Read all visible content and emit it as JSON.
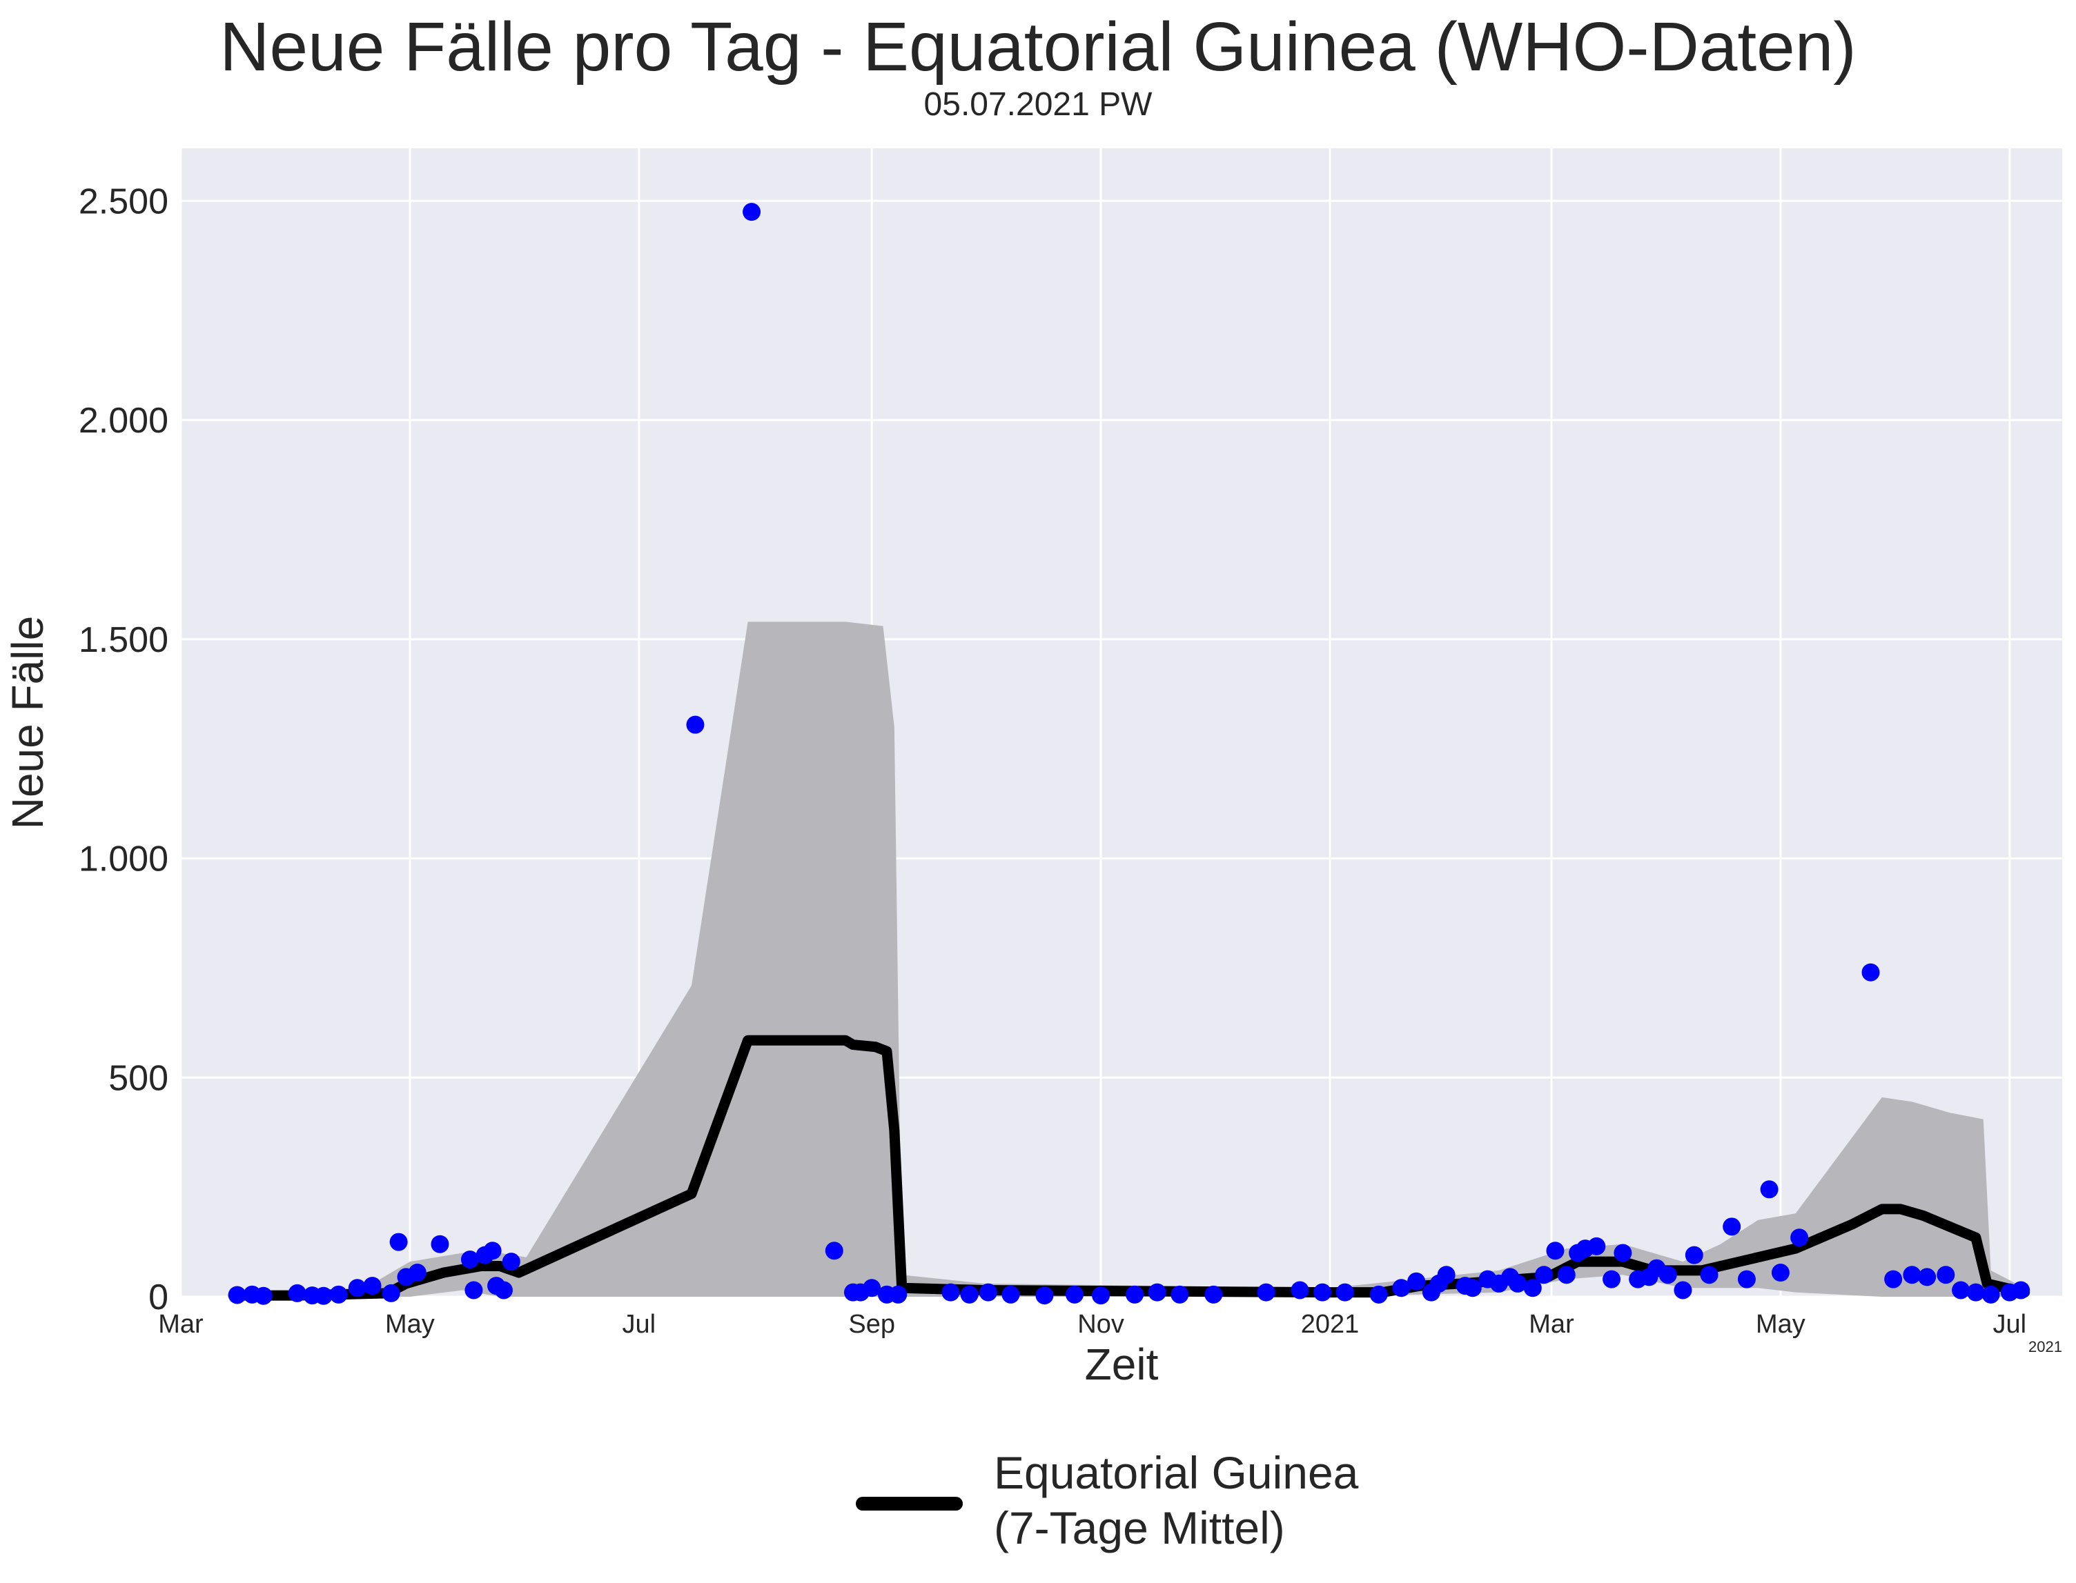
{
  "chart_data": {
    "type": "scatter",
    "title": "Neue Fälle pro Tag - Equatorial Guinea (WHO-Daten)",
    "subtitle": "05.07.2021 PW",
    "xlabel": "Zeit",
    "ylabel": "Neue Fälle",
    "x_offset_label": "2021",
    "xlim": [
      "2020-03-01",
      "2021-07-15"
    ],
    "ylim": [
      0,
      2620
    ],
    "grid": true,
    "legend_position": "bottom-center",
    "x_ticks": [
      {
        "date": "2020-03-01",
        "label": "Mar"
      },
      {
        "date": "2020-05-01",
        "label": "May"
      },
      {
        "date": "2020-07-01",
        "label": "Jul"
      },
      {
        "date": "2020-09-01",
        "label": "Sep"
      },
      {
        "date": "2020-11-01",
        "label": "Nov"
      },
      {
        "date": "2021-01-01",
        "label": "2021"
      },
      {
        "date": "2021-03-01",
        "label": "Mar"
      },
      {
        "date": "2021-05-01",
        "label": "May"
      },
      {
        "date": "2021-07-01",
        "label": "Jul"
      }
    ],
    "y_ticks": [
      {
        "value": 0,
        "label": "0"
      },
      {
        "value": 500,
        "label": "500"
      },
      {
        "value": 1000,
        "label": "1.000"
      },
      {
        "value": 1500,
        "label": "1.500"
      },
      {
        "value": 2000,
        "label": "2.000"
      },
      {
        "value": 2500,
        "label": "2.500"
      }
    ],
    "colors": {
      "points": "#0000ff",
      "line": "#000000",
      "band": "#b3b3b7",
      "plot_bg": "#eaeaf2",
      "grid": "#ffffff"
    },
    "series": [
      {
        "name": "Equatorial Guinea\n(7-Tage Mittel)",
        "kind": "line",
        "points": [
          [
            "2020-03-15",
            3
          ],
          [
            "2020-04-01",
            3
          ],
          [
            "2020-04-25",
            8
          ],
          [
            "2020-04-30",
            30
          ],
          [
            "2020-05-10",
            55
          ],
          [
            "2020-05-20",
            70
          ],
          [
            "2020-05-25",
            70
          ],
          [
            "2020-05-30",
            55
          ],
          [
            "2020-07-15",
            235
          ],
          [
            "2020-07-30",
            585
          ],
          [
            "2020-08-25",
            585
          ],
          [
            "2020-08-27",
            575
          ],
          [
            "2020-09-02",
            570
          ],
          [
            "2020-09-05",
            560
          ],
          [
            "2020-09-07",
            380
          ],
          [
            "2020-09-09",
            20
          ],
          [
            "2020-10-01",
            15
          ],
          [
            "2020-12-31",
            10
          ],
          [
            "2021-01-15",
            10
          ],
          [
            "2021-01-25",
            25
          ],
          [
            "2021-02-05",
            30
          ],
          [
            "2021-02-20",
            40
          ],
          [
            "2021-02-28",
            45
          ],
          [
            "2021-03-08",
            80
          ],
          [
            "2021-03-20",
            80
          ],
          [
            "2021-03-28",
            60
          ],
          [
            "2021-04-10",
            60
          ],
          [
            "2021-04-25",
            90
          ],
          [
            "2021-05-05",
            110
          ],
          [
            "2021-05-20",
            165
          ],
          [
            "2021-05-28",
            200
          ],
          [
            "2021-06-02",
            200
          ],
          [
            "2021-06-08",
            185
          ],
          [
            "2021-06-15",
            160
          ],
          [
            "2021-06-22",
            135
          ],
          [
            "2021-06-25",
            30
          ],
          [
            "2021-07-05",
            10
          ]
        ]
      },
      {
        "name": "",
        "kind": "band",
        "points": [
          [
            "2020-04-15",
            0,
            0
          ],
          [
            "2020-05-01",
            0,
            80
          ],
          [
            "2020-05-15",
            15,
            100
          ],
          [
            "2020-05-25",
            0,
            100
          ],
          [
            "2020-06-01",
            0,
            90
          ],
          [
            "2020-07-15",
            0,
            710
          ],
          [
            "2020-07-30",
            0,
            1540
          ],
          [
            "2020-08-25",
            0,
            1540
          ],
          [
            "2020-09-04",
            0,
            1530
          ],
          [
            "2020-09-07",
            0,
            1300
          ],
          [
            "2020-09-09",
            0,
            50
          ],
          [
            "2020-10-01",
            0,
            30
          ],
          [
            "2021-01-01",
            0,
            20
          ],
          [
            "2021-02-15",
            10,
            60
          ],
          [
            "2021-03-05",
            40,
            110
          ],
          [
            "2021-03-20",
            50,
            120
          ],
          [
            "2021-04-05",
            20,
            80
          ],
          [
            "2021-04-15",
            20,
            120
          ],
          [
            "2021-04-25",
            20,
            175
          ],
          [
            "2021-05-05",
            10,
            190
          ],
          [
            "2021-05-28",
            0,
            455
          ],
          [
            "2021-06-05",
            0,
            445
          ],
          [
            "2021-06-15",
            0,
            420
          ],
          [
            "2021-06-24",
            0,
            405
          ],
          [
            "2021-06-26",
            0,
            60
          ],
          [
            "2021-07-05",
            0,
            20
          ]
        ]
      },
      {
        "name": "",
        "kind": "scatter",
        "points": [
          [
            "2020-03-16",
            4
          ],
          [
            "2020-03-20",
            5
          ],
          [
            "2020-03-23",
            2
          ],
          [
            "2020-04-01",
            8
          ],
          [
            "2020-04-05",
            3
          ],
          [
            "2020-04-08",
            2
          ],
          [
            "2020-04-12",
            5
          ],
          [
            "2020-04-17",
            20
          ],
          [
            "2020-04-21",
            25
          ],
          [
            "2020-04-26",
            8
          ],
          [
            "2020-04-28",
            125
          ],
          [
            "2020-04-30",
            45
          ],
          [
            "2020-05-03",
            55
          ],
          [
            "2020-05-09",
            120
          ],
          [
            "2020-05-17",
            85
          ],
          [
            "2020-05-18",
            15
          ],
          [
            "2020-05-21",
            95
          ],
          [
            "2020-05-23",
            105
          ],
          [
            "2020-05-24",
            25
          ],
          [
            "2020-05-26",
            15
          ],
          [
            "2020-05-28",
            80
          ],
          [
            "2020-07-16",
            1305
          ],
          [
            "2020-07-31",
            2475
          ],
          [
            "2020-08-22",
            105
          ],
          [
            "2020-08-27",
            10
          ],
          [
            "2020-08-29",
            10
          ],
          [
            "2020-09-01",
            20
          ],
          [
            "2020-09-05",
            5
          ],
          [
            "2020-09-08",
            5
          ],
          [
            "2020-09-22",
            10
          ],
          [
            "2020-09-27",
            5
          ],
          [
            "2020-10-02",
            10
          ],
          [
            "2020-10-08",
            5
          ],
          [
            "2020-10-17",
            3
          ],
          [
            "2020-10-25",
            5
          ],
          [
            "2020-11-01",
            3
          ],
          [
            "2020-11-10",
            5
          ],
          [
            "2020-11-16",
            10
          ],
          [
            "2020-11-22",
            5
          ],
          [
            "2020-12-01",
            5
          ],
          [
            "2020-12-15",
            10
          ],
          [
            "2020-12-24",
            15
          ],
          [
            "2020-12-30",
            10
          ],
          [
            "2021-01-05",
            10
          ],
          [
            "2021-01-14",
            5
          ],
          [
            "2021-01-20",
            20
          ],
          [
            "2021-01-24",
            35
          ],
          [
            "2021-01-28",
            10
          ],
          [
            "2021-01-30",
            30
          ],
          [
            "2021-02-01",
            50
          ],
          [
            "2021-02-06",
            25
          ],
          [
            "2021-02-08",
            20
          ],
          [
            "2021-02-12",
            40
          ],
          [
            "2021-02-15",
            30
          ],
          [
            "2021-02-18",
            45
          ],
          [
            "2021-02-20",
            30
          ],
          [
            "2021-02-24",
            20
          ],
          [
            "2021-02-27",
            50
          ],
          [
            "2021-03-02",
            105
          ],
          [
            "2021-03-05",
            50
          ],
          [
            "2021-03-08",
            100
          ],
          [
            "2021-03-10",
            110
          ],
          [
            "2021-03-13",
            115
          ],
          [
            "2021-03-17",
            40
          ],
          [
            "2021-03-20",
            100
          ],
          [
            "2021-03-24",
            40
          ],
          [
            "2021-03-27",
            45
          ],
          [
            "2021-03-29",
            65
          ],
          [
            "2021-04-01",
            50
          ],
          [
            "2021-04-05",
            15
          ],
          [
            "2021-04-08",
            95
          ],
          [
            "2021-04-12",
            50
          ],
          [
            "2021-04-18",
            160
          ],
          [
            "2021-04-22",
            40
          ],
          [
            "2021-04-28",
            245
          ],
          [
            "2021-05-01",
            55
          ],
          [
            "2021-05-06",
            135
          ],
          [
            "2021-05-25",
            740
          ],
          [
            "2021-05-31",
            40
          ],
          [
            "2021-06-05",
            50
          ],
          [
            "2021-06-09",
            45
          ],
          [
            "2021-06-14",
            50
          ],
          [
            "2021-06-18",
            15
          ],
          [
            "2021-06-22",
            10
          ],
          [
            "2021-06-26",
            5
          ],
          [
            "2021-07-01",
            10
          ],
          [
            "2021-07-04",
            15
          ]
        ]
      }
    ]
  }
}
